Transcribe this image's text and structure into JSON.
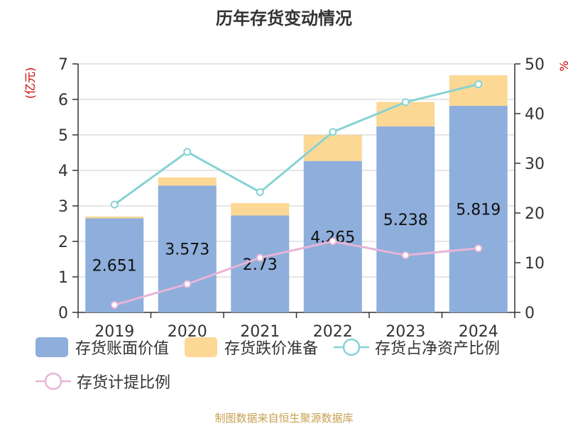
{
  "title": "历年存货变动情况",
  "source": "制图数据来自恒生聚源数据库",
  "colors": {
    "book_value": "#8eaedb",
    "impairment": "#fcd895",
    "ratio_net_assets": "#86d3d4",
    "provision_ratio": "#e8b4d8",
    "axis_label": "#cc0000"
  },
  "legend": [
    {
      "label": "存货账面价值"
    },
    {
      "label": "存货跌价准备"
    },
    {
      "label": "存货占净资产比例"
    },
    {
      "label": "存货计提比例"
    }
  ],
  "chart_data": {
    "type": "bar",
    "categories": [
      "2019",
      "2020",
      "2021",
      "2022",
      "2023",
      "2024"
    ],
    "y_left_label": "(亿元)",
    "y_right_label": "%",
    "ylim_left": [
      0,
      7
    ],
    "yticks_left": [
      "0",
      "1",
      "2",
      "3",
      "4",
      "5",
      "6",
      "7"
    ],
    "ylim_right": [
      0,
      50
    ],
    "yticks_right": [
      "0",
      "10",
      "20",
      "30",
      "40",
      "50"
    ],
    "grid": true,
    "legend_position": "bottom",
    "series": [
      {
        "name": "存货账面价值",
        "type": "bar",
        "axis": "left",
        "stack": "inventory",
        "values": [
          2.651,
          3.573,
          2.73,
          4.265,
          5.238,
          5.819
        ],
        "labels": [
          "2.651",
          "3.573",
          "2.73",
          "4.265",
          "5.238",
          "5.819"
        ]
      },
      {
        "name": "存货跌价准备",
        "type": "bar",
        "axis": "left",
        "stack": "inventory",
        "values": [
          0.05,
          0.23,
          0.35,
          0.73,
          0.69,
          0.86
        ]
      },
      {
        "name": "存货占净资产比例",
        "type": "line",
        "axis": "right",
        "values": [
          21.7,
          32.3,
          24.2,
          36.3,
          42.3,
          45.9
        ]
      },
      {
        "name": "存货计提比例",
        "type": "line",
        "axis": "right",
        "values": [
          1.5,
          5.7,
          11.0,
          14.3,
          11.5,
          12.9
        ]
      }
    ]
  }
}
